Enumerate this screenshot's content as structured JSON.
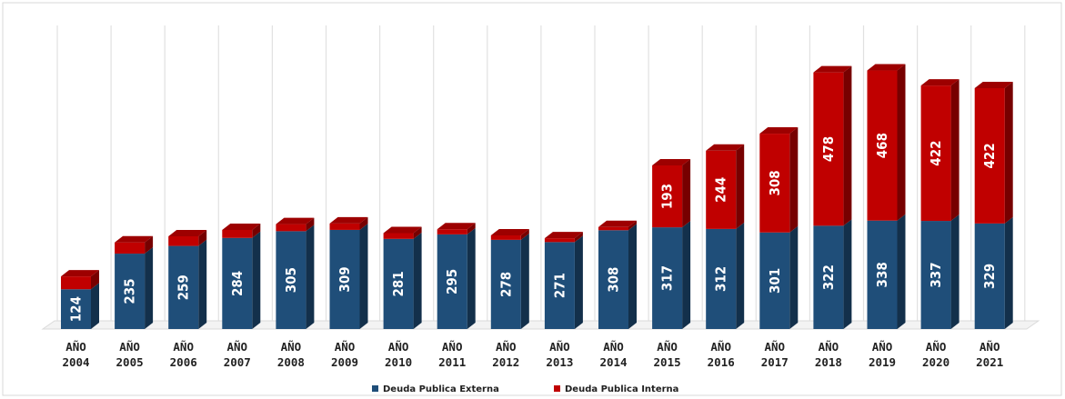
{
  "chart_data": {
    "type": "bar",
    "stacked": true,
    "three_d": true,
    "categories": [
      "AÑO 2004",
      "AÑO 2005",
      "AÑO 2006",
      "AÑO 2007",
      "AÑO 2008",
      "AÑO 2009",
      "AÑO 2010",
      "AÑO 2011",
      "AÑO 2012",
      "AÑO 2013",
      "AÑO 2014",
      "AÑO 2015",
      "AÑO 2016",
      "AÑO 2017",
      "AÑO 2018",
      "AÑO 2019",
      "AÑO 2020",
      "AÑO 2021"
    ],
    "series": [
      {
        "name": "Deuda Publica Externa",
        "color": "#1f4e79",
        "values": [
          124,
          235,
          259,
          284,
          305,
          309,
          281,
          295,
          278,
          271,
          308,
          317,
          312,
          301,
          322,
          338,
          337,
          329
        ],
        "labeled": [
          true,
          true,
          true,
          true,
          true,
          true,
          true,
          true,
          true,
          true,
          true,
          true,
          true,
          true,
          true,
          true,
          true,
          true
        ]
      },
      {
        "name": "Deuda Publica Interna",
        "color": "#c00000",
        "values": [
          40,
          35,
          30,
          25,
          22,
          20,
          18,
          16,
          14,
          12,
          10,
          193,
          244,
          308,
          478,
          468,
          422,
          422
        ],
        "labeled": [
          false,
          false,
          false,
          false,
          false,
          false,
          false,
          false,
          false,
          false,
          false,
          true,
          true,
          true,
          true,
          true,
          true,
          true
        ]
      }
    ],
    "title": "",
    "xlabel": "",
    "ylabel": "",
    "ylim": [
      0,
      850
    ],
    "grid": "vertical",
    "legend": "bottom-center"
  }
}
